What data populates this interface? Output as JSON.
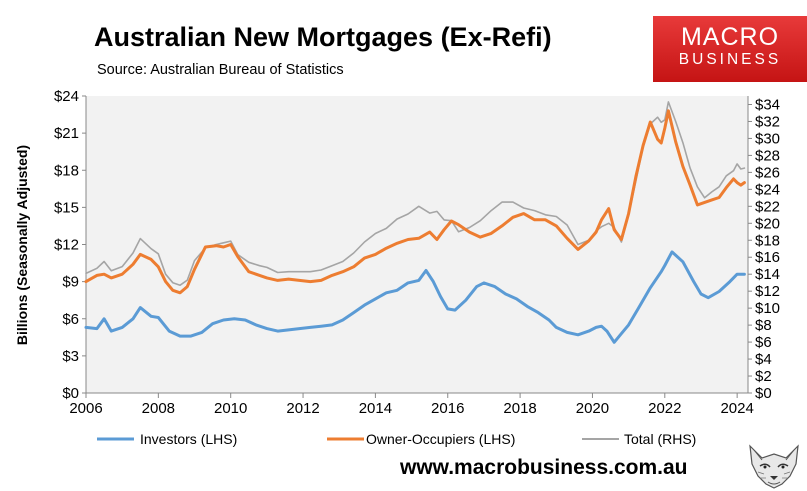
{
  "header": {
    "title": "Australian New Mortgages (Ex-Refi)",
    "subtitle": "Source: Australian Bureau of Statistics"
  },
  "logo": {
    "line1": "MACRO",
    "line2": "BUSINESS"
  },
  "footer": {
    "website": "www.macrobusiness.com.au"
  },
  "colors": {
    "investors": "#5b9bd5",
    "owner_occupiers": "#ed7d31",
    "total": "#a5a5a5",
    "plot_bg": "#f2f2f2",
    "logo_red": "#d42020"
  },
  "chart_data": {
    "type": "line",
    "ylabel": "Billions (Seasonally Adjusted)",
    "xlim": [
      2006,
      2024.3
    ],
    "x_ticks": [
      "2006",
      "2008",
      "2010",
      "2012",
      "2014",
      "2016",
      "2018",
      "2020",
      "2022",
      "2024"
    ],
    "ylim_left": [
      0,
      24
    ],
    "y_ticks_left": [
      "$0",
      "$3",
      "$6",
      "$9",
      "$12",
      "$15",
      "$18",
      "$21",
      "$24"
    ],
    "ylim_right": [
      0,
      35
    ],
    "y_ticks_right": [
      "$0",
      "$2",
      "$4",
      "$6",
      "$8",
      "$10",
      "$12",
      "$14",
      "$16",
      "$18",
      "$20",
      "$22",
      "$24",
      "$26",
      "$28",
      "$30",
      "$32",
      "$34"
    ],
    "legend_position": "bottom",
    "grid": false,
    "series": [
      {
        "name": "Investors (LHS)",
        "axis": "left",
        "x": [
          2006.0,
          2006.3,
          2006.5,
          2006.7,
          2007.0,
          2007.3,
          2007.5,
          2007.8,
          2008.0,
          2008.3,
          2008.6,
          2008.9,
          2009.2,
          2009.5,
          2009.8,
          2010.1,
          2010.4,
          2010.7,
          2011.0,
          2011.3,
          2011.6,
          2011.9,
          2012.2,
          2012.5,
          2012.8,
          2013.1,
          2013.4,
          2013.7,
          2014.0,
          2014.3,
          2014.6,
          2014.9,
          2015.2,
          2015.4,
          2015.6,
          2015.8,
          2016.0,
          2016.2,
          2016.5,
          2016.8,
          2017.0,
          2017.3,
          2017.6,
          2017.9,
          2018.2,
          2018.5,
          2018.8,
          2019.0,
          2019.3,
          2019.6,
          2019.9,
          2020.1,
          2020.25,
          2020.4,
          2020.6,
          2020.8,
          2021.0,
          2021.3,
          2021.6,
          2021.9,
          2022.0,
          2022.2,
          2022.5,
          2022.8,
          2023.0,
          2023.2,
          2023.5,
          2023.8,
          2024.0,
          2024.2
        ],
        "values": [
          5.3,
          5.2,
          6.0,
          5.0,
          5.3,
          6.0,
          6.9,
          6.2,
          6.1,
          5.0,
          4.6,
          4.6,
          4.9,
          5.6,
          5.9,
          6.0,
          5.9,
          5.5,
          5.2,
          5.0,
          5.1,
          5.2,
          5.3,
          5.4,
          5.5,
          5.9,
          6.5,
          7.1,
          7.6,
          8.1,
          8.3,
          8.9,
          9.1,
          9.9,
          9.0,
          7.8,
          6.8,
          6.7,
          7.5,
          8.6,
          8.9,
          8.6,
          8.0,
          7.6,
          7.0,
          6.5,
          5.9,
          5.3,
          4.9,
          4.7,
          5.0,
          5.3,
          5.4,
          5.0,
          4.1,
          4.8,
          5.5,
          7.0,
          8.5,
          9.8,
          10.3,
          11.4,
          10.6,
          9.0,
          8.0,
          7.7,
          8.2,
          9.0,
          9.6,
          9.6
        ]
      },
      {
        "name": "Owner-Occupiers (LHS)",
        "axis": "left",
        "x": [
          2006.0,
          2006.3,
          2006.5,
          2006.7,
          2007.0,
          2007.3,
          2007.5,
          2007.8,
          2008.0,
          2008.2,
          2008.4,
          2008.6,
          2008.8,
          2009.0,
          2009.3,
          2009.6,
          2009.8,
          2010.0,
          2010.2,
          2010.5,
          2010.8,
          2011.0,
          2011.3,
          2011.6,
          2011.9,
          2012.2,
          2012.5,
          2012.8,
          2013.1,
          2013.4,
          2013.7,
          2014.0,
          2014.3,
          2014.6,
          2014.9,
          2015.2,
          2015.5,
          2015.7,
          2015.9,
          2016.1,
          2016.3,
          2016.6,
          2016.9,
          2017.2,
          2017.5,
          2017.8,
          2018.1,
          2018.4,
          2018.7,
          2019.0,
          2019.3,
          2019.6,
          2019.9,
          2020.1,
          2020.25,
          2020.45,
          2020.6,
          2020.8,
          2021.0,
          2021.2,
          2021.4,
          2021.6,
          2021.8,
          2021.9,
          2022.0,
          2022.1,
          2022.3,
          2022.5,
          2022.7,
          2022.9,
          2023.1,
          2023.3,
          2023.5,
          2023.7,
          2023.9,
          2024.0,
          2024.1,
          2024.2
        ],
        "values": [
          9.0,
          9.5,
          9.6,
          9.3,
          9.6,
          10.4,
          11.2,
          10.8,
          10.2,
          9.0,
          8.3,
          8.1,
          8.6,
          10.0,
          11.8,
          11.9,
          11.8,
          12.0,
          11.0,
          9.8,
          9.5,
          9.3,
          9.1,
          9.2,
          9.1,
          9.0,
          9.1,
          9.5,
          9.8,
          10.2,
          10.9,
          11.2,
          11.7,
          12.1,
          12.4,
          12.5,
          13.0,
          12.4,
          13.2,
          13.9,
          13.6,
          13.0,
          12.6,
          12.9,
          13.5,
          14.2,
          14.5,
          14.0,
          14.0,
          13.5,
          12.5,
          11.6,
          12.3,
          13.0,
          14.0,
          14.9,
          13.2,
          12.4,
          14.5,
          17.5,
          20.0,
          21.9,
          20.5,
          20.2,
          21.4,
          22.8,
          20.3,
          18.3,
          16.8,
          15.2,
          15.4,
          15.6,
          15.8,
          16.6,
          17.3,
          17.0,
          16.8,
          17.0
        ]
      },
      {
        "name": "Total (RHS)",
        "axis": "right",
        "x": [
          2006.0,
          2006.3,
          2006.5,
          2006.7,
          2007.0,
          2007.3,
          2007.5,
          2007.8,
          2008.0,
          2008.2,
          2008.4,
          2008.6,
          2008.8,
          2009.0,
          2009.3,
          2009.6,
          2009.8,
          2010.0,
          2010.2,
          2010.5,
          2010.8,
          2011.0,
          2011.3,
          2011.6,
          2011.9,
          2012.2,
          2012.5,
          2012.8,
          2013.1,
          2013.4,
          2013.7,
          2014.0,
          2014.3,
          2014.6,
          2014.9,
          2015.2,
          2015.5,
          2015.7,
          2015.9,
          2016.1,
          2016.3,
          2016.6,
          2016.9,
          2017.2,
          2017.5,
          2017.8,
          2018.1,
          2018.4,
          2018.7,
          2019.0,
          2019.3,
          2019.6,
          2019.9,
          2020.1,
          2020.25,
          2020.45,
          2020.6,
          2020.8,
          2021.0,
          2021.2,
          2021.4,
          2021.6,
          2021.8,
          2021.9,
          2022.0,
          2022.1,
          2022.3,
          2022.5,
          2022.7,
          2022.9,
          2023.1,
          2023.3,
          2023.5,
          2023.7,
          2023.9,
          2024.0,
          2024.1,
          2024.2
        ],
        "values": [
          14.1,
          14.7,
          15.5,
          14.4,
          14.9,
          16.5,
          18.2,
          17.0,
          16.4,
          14.0,
          13.0,
          12.7,
          13.3,
          15.6,
          17.1,
          17.5,
          17.7,
          17.9,
          16.3,
          15.4,
          15.0,
          14.8,
          14.2,
          14.3,
          14.3,
          14.3,
          14.5,
          15.0,
          15.5,
          16.5,
          17.8,
          18.8,
          19.4,
          20.5,
          21.1,
          22.0,
          21.2,
          21.4,
          20.4,
          20.3,
          19.0,
          19.5,
          20.3,
          21.5,
          22.5,
          22.5,
          21.8,
          21.5,
          21.0,
          20.8,
          19.8,
          17.5,
          18.0,
          19.1,
          19.6,
          20.0,
          19.5,
          17.8,
          21.0,
          25.0,
          29.0,
          31.7,
          32.5,
          31.9,
          32.2,
          34.3,
          32.0,
          29.5,
          26.5,
          24.3,
          23.0,
          23.7,
          24.3,
          25.6,
          26.2,
          27.0,
          26.4,
          26.5
        ]
      }
    ]
  }
}
